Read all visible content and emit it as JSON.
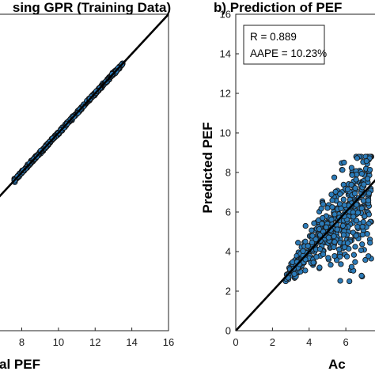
{
  "chart_data": [
    {
      "type": "scatter",
      "title": "sing GPR (Training Data)",
      "xlabel": "al PEF",
      "ylabel": "",
      "xlim": [
        0,
        16
      ],
      "ylim": [
        0,
        16
      ],
      "x_ticks": [
        "8",
        "10",
        "12",
        "14",
        "16"
      ],
      "y_ticks": [],
      "grid": false,
      "point_style": "dense blue points lying on the 1:1 line",
      "point_range": [
        7.6,
        13.5
      ],
      "reference_line": {
        "x": [
          0,
          16
        ],
        "y": [
          0,
          16
        ],
        "color": "#000000"
      }
    },
    {
      "type": "scatter",
      "title": "b) Prediction of PEF",
      "xlabel": "Ac",
      "ylabel": "Predicted PEF",
      "xlim": [
        0,
        16
      ],
      "ylim": [
        0,
        16
      ],
      "x_ticks": [
        "0",
        "2",
        "4",
        "6"
      ],
      "y_ticks": [
        "0",
        "2",
        "4",
        "6",
        "8",
        "10",
        "12",
        "14",
        "16"
      ],
      "grid": false,
      "stats": {
        "r": "R = 0.889",
        "aape": "AAPE = 10.23%"
      },
      "point_color": "#2b7bb9",
      "point_edge": "#1a1a1a",
      "point_x_range": [
        2.7,
        7.4
      ],
      "point_y_range": [
        2.5,
        8.8
      ],
      "reference_line": {
        "x": [
          0,
          16
        ],
        "y": [
          0,
          16
        ],
        "color": "#000000"
      }
    }
  ]
}
